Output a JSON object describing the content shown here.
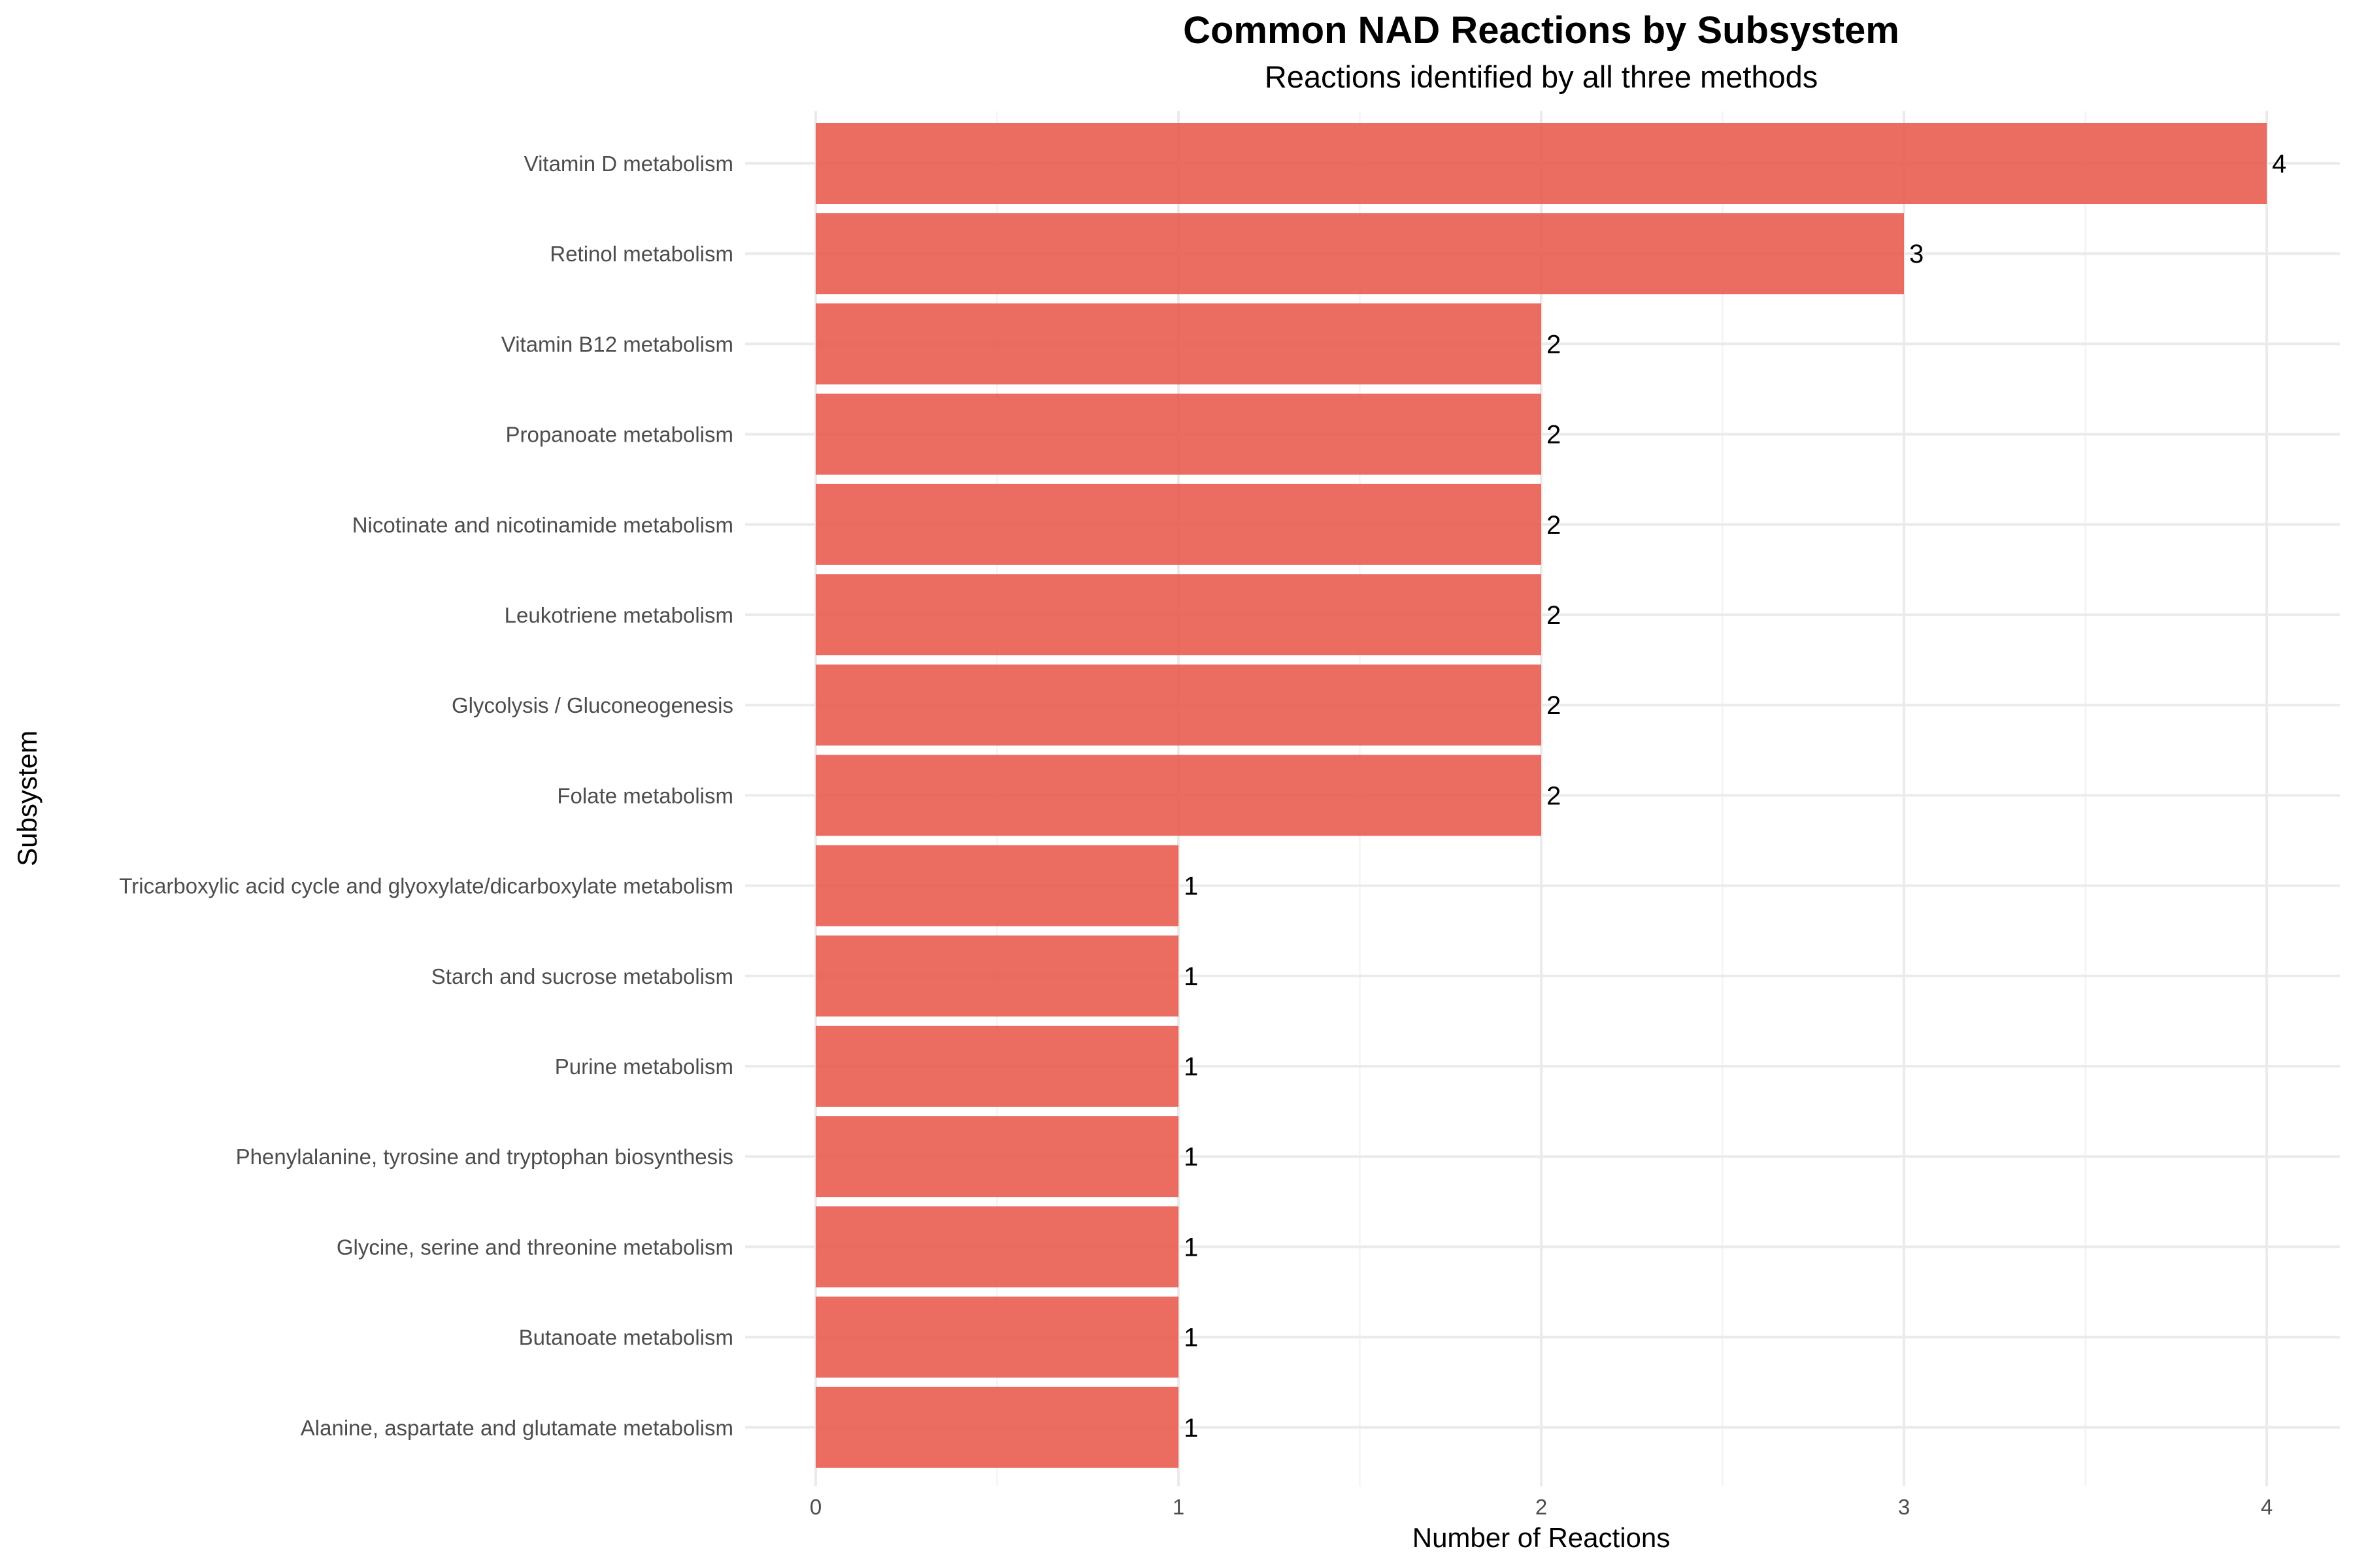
{
  "chart_data": {
    "type": "bar",
    "orientation": "horizontal",
    "title": "Common NAD Reactions by Subsystem",
    "subtitle": "Reactions identified by all three methods",
    "xlabel": "Number of Reactions",
    "ylabel": "Subsystem",
    "xlim": [
      0,
      4
    ],
    "x_ticks": [
      "0",
      "1",
      "2",
      "3",
      "4"
    ],
    "grid": true,
    "legend": "none",
    "bar_color": "#e8584a",
    "categories": [
      "Vitamin D metabolism",
      "Retinol metabolism",
      "Vitamin B12 metabolism",
      "Propanoate metabolism",
      "Nicotinate and nicotinamide metabolism",
      "Leukotriene metabolism",
      "Glycolysis / Gluconeogenesis",
      "Folate metabolism",
      "Tricarboxylic acid cycle and glyoxylate/dicarboxylate metabolism",
      "Starch and sucrose metabolism",
      "Purine metabolism",
      "Phenylalanine, tyrosine and tryptophan biosynthesis",
      "Glycine, serine and threonine metabolism",
      "Butanoate metabolism",
      "Alanine, aspartate and glutamate metabolism"
    ],
    "values": [
      4,
      3,
      2,
      2,
      2,
      2,
      2,
      2,
      1,
      1,
      1,
      1,
      1,
      1,
      1
    ],
    "data_labels": [
      "4",
      "3",
      "2",
      "2",
      "2",
      "2",
      "2",
      "2",
      "1",
      "1",
      "1",
      "1",
      "1",
      "1",
      "1"
    ]
  }
}
